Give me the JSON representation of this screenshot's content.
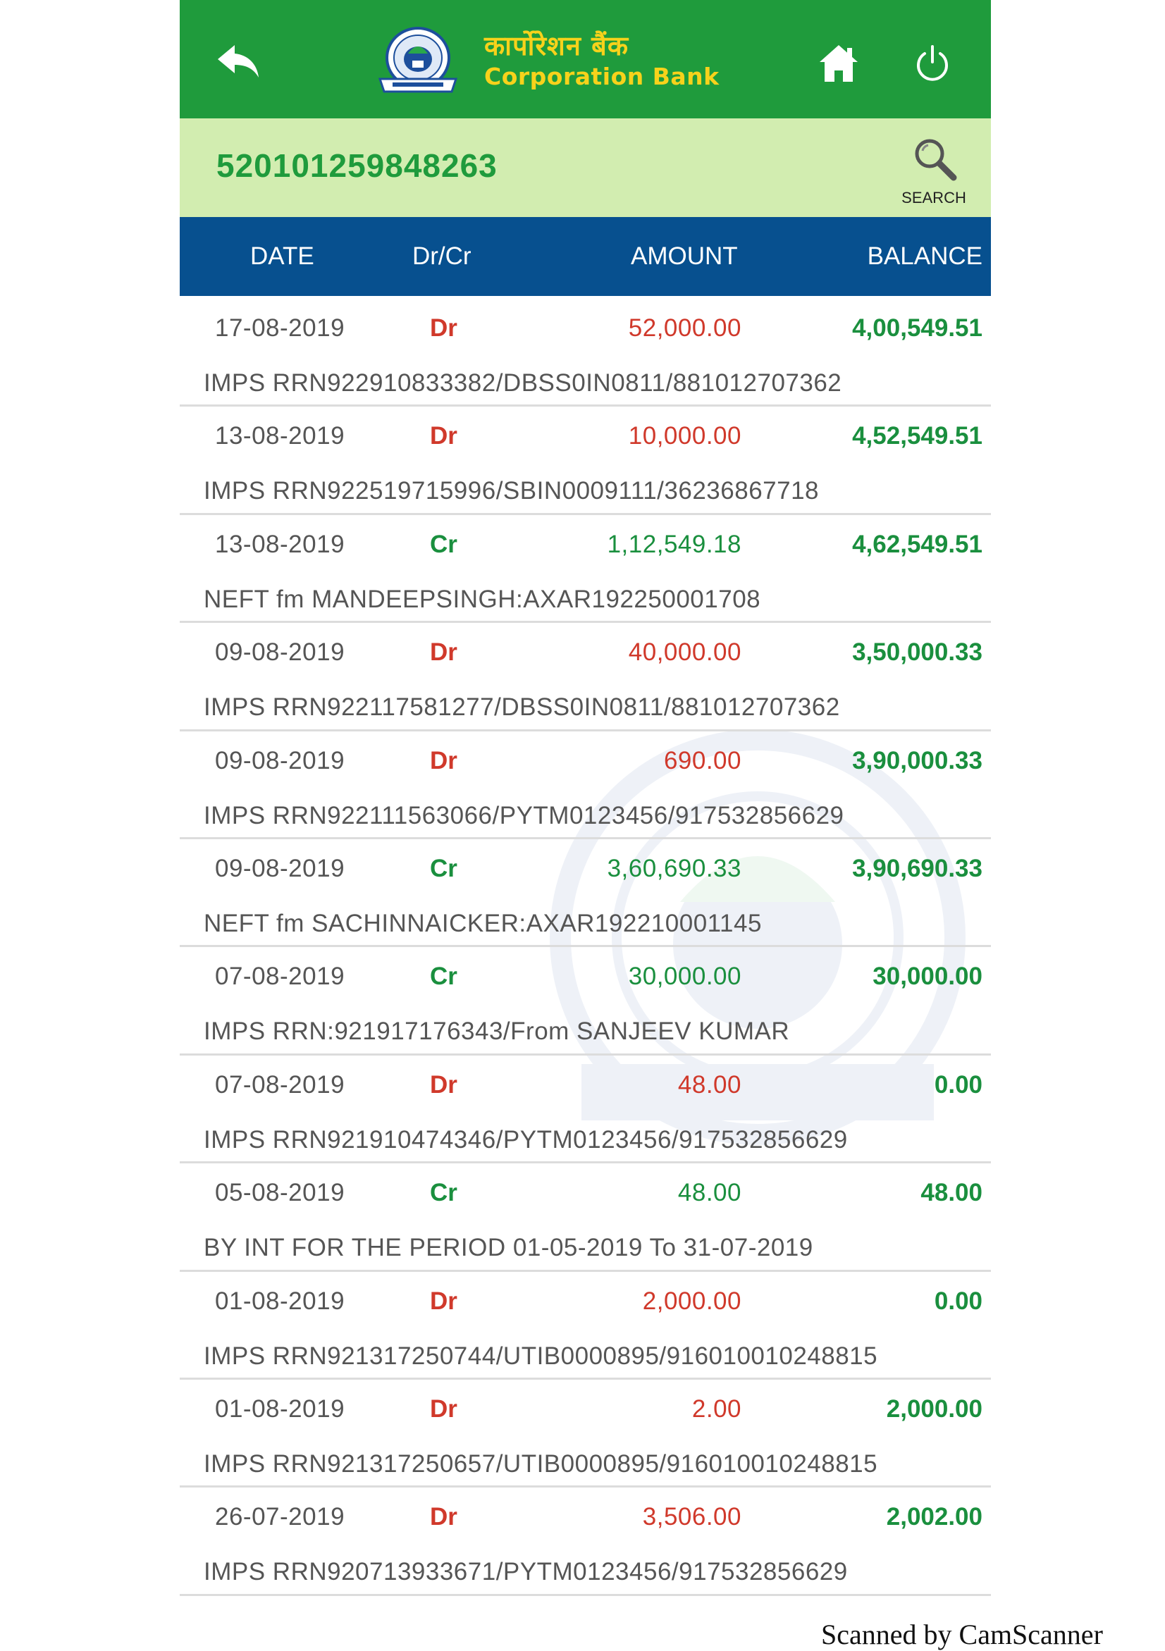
{
  "header": {
    "brand_hindi": "कार्पोरेशन बैंक",
    "brand_english": "Corporation Bank",
    "back_icon": "back-arrow-icon",
    "home_icon": "home-icon",
    "power_icon": "power-icon",
    "header_color": "#1f9b3c",
    "brand_color": "#f7d21b"
  },
  "account": {
    "number": "520101259848263",
    "search_label": "SEARCH"
  },
  "columns": {
    "date": "DATE",
    "drcr": "Dr/Cr",
    "amount": "AMOUNT",
    "balance": "BALANCE"
  },
  "transactions": [
    {
      "date": "17-08-2019",
      "type": "Dr",
      "amount": "52,000.00",
      "balance": "4,00,549.51",
      "description": "IMPS RRN922910833382/DBSS0IN0811/881012707362"
    },
    {
      "date": "13-08-2019",
      "type": "Dr",
      "amount": "10,000.00",
      "balance": "4,52,549.51",
      "description": "IMPS RRN922519715996/SBIN0009111/36236867718"
    },
    {
      "date": "13-08-2019",
      "type": "Cr",
      "amount": "1,12,549.18",
      "balance": "4,62,549.51",
      "description": "NEFT fm MANDEEPSINGH:AXAR192250001708"
    },
    {
      "date": "09-08-2019",
      "type": "Dr",
      "amount": "40,000.00",
      "balance": "3,50,000.33",
      "description": "IMPS RRN922117581277/DBSS0IN0811/881012707362"
    },
    {
      "date": "09-08-2019",
      "type": "Dr",
      "amount": "690.00",
      "balance": "3,90,000.33",
      "description": "IMPS RRN922111563066/PYTM0123456/917532856629"
    },
    {
      "date": "09-08-2019",
      "type": "Cr",
      "amount": "3,60,690.33",
      "balance": "3,90,690.33",
      "description": "NEFT fm SACHINNAICKER:AXAR192210001145"
    },
    {
      "date": "07-08-2019",
      "type": "Cr",
      "amount": "30,000.00",
      "balance": "30,000.00",
      "description": "IMPS RRN:921917176343/From SANJEEV KUMAR"
    },
    {
      "date": "07-08-2019",
      "type": "Dr",
      "amount": "48.00",
      "balance": "0.00",
      "description": "IMPS RRN921910474346/PYTM0123456/917532856629"
    },
    {
      "date": "05-08-2019",
      "type": "Cr",
      "amount": "48.00",
      "balance": "48.00",
      "description": "BY INT FOR THE PERIOD 01-05-2019 To 31-07-2019"
    },
    {
      "date": "01-08-2019",
      "type": "Dr",
      "amount": "2,000.00",
      "balance": "0.00",
      "description": "IMPS RRN921317250744/UTIB0000895/916010010248815"
    },
    {
      "date": "01-08-2019",
      "type": "Dr",
      "amount": "2.00",
      "balance": "2,000.00",
      "description": "IMPS RRN921317250657/UTIB0000895/916010010248815"
    },
    {
      "date": "26-07-2019",
      "type": "Dr",
      "amount": "3,506.00",
      "balance": "2,002.00",
      "description": "IMPS RRN920713933671/PYTM0123456/917532856629"
    }
  ],
  "colors": {
    "debit": "#d0392b",
    "credit": "#1a8f3e",
    "column_header_bg": "#07508f",
    "account_bar_bg": "#d2edb0"
  },
  "footer": {
    "scanner_text": "Scanned by CamScanner"
  }
}
